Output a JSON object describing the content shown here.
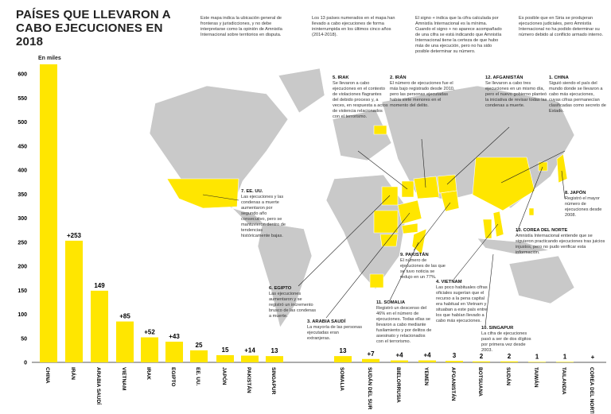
{
  "chart_data": {
    "type": "bar",
    "title": "PAÍSES QUE LLEVARON A CABO EJECUCIONES EN 2018",
    "y_label": "En miles",
    "categories": [
      "CHINA",
      "IRÁN",
      "ARABIA SAUDÍ",
      "VIETNAM",
      "IRAK",
      "EGIPTO",
      "EE. UU.",
      "JAPÓN",
      "PAKISTÁN",
      "SINGAPUR",
      "SOMALIA",
      "SUDÁN DEL SUR",
      "BIELORRUSIA",
      "YEMEN",
      "AFGANISTÁN",
      "BOTSUANA",
      "SUDÁN",
      "TAIWÁN",
      "TAILANDIA",
      "COREA DEL NORTE"
    ],
    "values": [
      620,
      253,
      149,
      85,
      52,
      43,
      25,
      15,
      14,
      13,
      13,
      7,
      4,
      4,
      3,
      2,
      2,
      1,
      1,
      null
    ],
    "value_labels": [
      null,
      "+253",
      "149",
      "+85",
      "+52",
      "+43",
      "25",
      "15",
      "+14",
      "13",
      "13",
      "+7",
      "+4",
      "+4",
      "3",
      "2",
      "2",
      "1",
      "1",
      "+"
    ],
    "color": "#ffe600",
    "ylim": [
      0,
      600
    ],
    "yticks": [
      0,
      50,
      100,
      150,
      200,
      250,
      300,
      350,
      400,
      450,
      500,
      550,
      600
    ],
    "grid": false
  },
  "notes": [
    "Este mapa indica la ubicación general de fronteras y jurisdicciones, y no debe interpretarse como la opinión de Amnistía Internacional sobre territorios en disputa.",
    "Los 13 países numerados en el mapa han llevado a cabo ejecuciones de forma ininterrumpida en los últimos cinco años (2014-2018).",
    "El signo + indica que la cifra calculada por Amnistía Internacional es la mínima. Cuando el signo + no aparece acompañado de una cifra se está indicando que Amnistía Internacional tiene la certeza de que hubo más de una ejecución, pero no ha sido posible determinar su número.",
    "Es posible que en Siria se produjeran ejecuciones judiciales, pero Amnistía Internacional no ha podido determinar su número debido al conflicto armado interno."
  ],
  "annotations": [
    {
      "title": "5. IRAK",
      "text": "Se llevaron a cabo ejecuciones en el contexto de violaciones flagrantes del debido proceso y, a veces, en respuesta a actos de violencia relacionados con el terrorismo."
    },
    {
      "title": "2. IRÁN",
      "text": "El número de ejecuciones fue el más bajo registrado desde 2010, pero las personas ejecutadas había siete menores en el momento del delito."
    },
    {
      "title": "12. AFGANISTÁN",
      "text": "Se llevaron a cabo tres ejecuciones en un mismo día, pero el nuevo gobierno planteó la iniciativa de revisar todas las condenas a muerte."
    },
    {
      "title": "1. CHINA",
      "text": "Siguió siendo el país del mundo donde se llevaron a cabo más ejecuciones, cuyas cifras permanecían clasificadas como secreto de Estado."
    },
    {
      "title": "7. EE. UU.",
      "text": "Las ejecuciones y las condenas a muerte aumentaron por segundo año consecutivo, pero se mantuvieron dentro de tendencias históricamente bajas."
    },
    {
      "title": "8. JAPÓN",
      "text": "Registró el mayor número de ejecuciones desde 2008."
    },
    {
      "title": "13. COREA DEL NORTE",
      "text": "Amnistía Internacional entiende que se siguieron practicando ejecuciones tras juicios injustos, pero no pudo verificar esta información."
    },
    {
      "title": "9. PAKISTÁN",
      "text": "El número de ejecuciones de las que se tuvo noticia se redujo en un 77%."
    },
    {
      "title": "6. EGIPTO",
      "text": "Las ejecuciones aumentaron y se registró un incremento brusco de las condenas a muerte."
    },
    {
      "title": "3. ARABIA SAUDÍ",
      "text": "La mayoría de las personas ejecutadas eran extranjeras."
    },
    {
      "title": "11. SOMALIA",
      "text": "Registró un descenso del 46% en el número de ejecuciones. Todas ellas se llevaron a cabo mediante fusilamiento y por delitos de asesinato y relacionados con el terrorismo."
    },
    {
      "title": "4. VIETNAM",
      "text": "Las poco habituales cifras oficiales sugerían que el recurso a la pena capital era habitual en Vietnam y situaban a este país entre los que habían llevado a cabo más ejecuciones."
    },
    {
      "title": "10. SINGAPUR",
      "text": "La cifra de ejecuciones pasó a ser de dos dígitos por primera vez desde 2003."
    }
  ]
}
